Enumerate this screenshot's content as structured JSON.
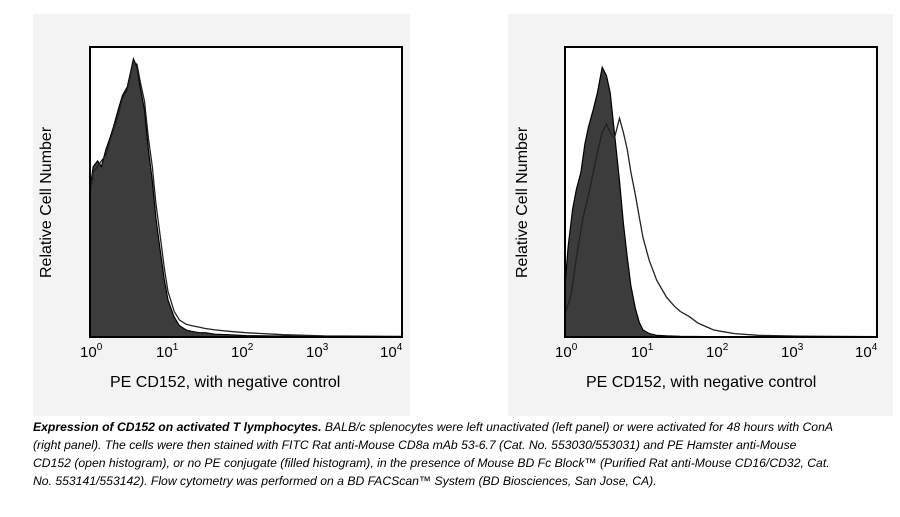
{
  "chart_data": [
    {
      "type": "histogram",
      "panel": "left",
      "ylabel": "Relative Cell Number",
      "xlabel": "PE CD152, with negative control",
      "xscale": "log",
      "xlim": [
        1,
        10000
      ],
      "ylim": [
        0,
        1
      ],
      "ticks": [
        {
          "base": "10",
          "exp": "0"
        },
        {
          "base": "10",
          "exp": "1"
        },
        {
          "base": "10",
          "exp": "2"
        },
        {
          "base": "10",
          "exp": "3"
        },
        {
          "base": "10",
          "exp": "4"
        }
      ],
      "series": [
        {
          "name": "no PE conjugate (filled histogram)",
          "style": "filled",
          "x": [
            1,
            1.1,
            1.25,
            1.4,
            1.6,
            1.8,
            2,
            2.3,
            2.6,
            3,
            3.3,
            3.6,
            4,
            4.4,
            5,
            5.6,
            6.3,
            7,
            8,
            9,
            10,
            12,
            14,
            17,
            20,
            25,
            30,
            40,
            60,
            100,
            300,
            1000,
            10000
          ],
          "y": [
            0.52,
            0.6,
            0.62,
            0.6,
            0.66,
            0.7,
            0.74,
            0.8,
            0.85,
            0.88,
            0.93,
            0.98,
            0.95,
            0.88,
            0.8,
            0.66,
            0.55,
            0.42,
            0.3,
            0.2,
            0.13,
            0.07,
            0.04,
            0.025,
            0.02,
            0.015,
            0.015,
            0.01,
            0.008,
            0.005,
            0.003,
            0.002,
            0.001
          ]
        },
        {
          "name": "PE Hamster anti-Mouse CD152 (open histogram)",
          "style": "open",
          "x": [
            1,
            1.1,
            1.25,
            1.4,
            1.6,
            1.8,
            2,
            2.3,
            2.6,
            3,
            3.3,
            3.6,
            4,
            4.4,
            5,
            5.6,
            6.3,
            7,
            8,
            9,
            10,
            12,
            14,
            17,
            20,
            25,
            30,
            40,
            60,
            100,
            300,
            1000,
            10000
          ],
          "y": [
            0.5,
            0.58,
            0.6,
            0.62,
            0.64,
            0.69,
            0.73,
            0.78,
            0.84,
            0.87,
            0.92,
            0.97,
            0.96,
            0.9,
            0.83,
            0.7,
            0.6,
            0.47,
            0.35,
            0.24,
            0.16,
            0.09,
            0.06,
            0.045,
            0.04,
            0.035,
            0.03,
            0.025,
            0.02,
            0.015,
            0.008,
            0.004,
            0.002
          ]
        }
      ]
    },
    {
      "type": "histogram",
      "panel": "right",
      "ylabel": "Relative Cell Number",
      "xlabel": "PE CD152, with negative control",
      "xscale": "log",
      "xlim": [
        1,
        10000
      ],
      "ylim": [
        0,
        1
      ],
      "ticks": [
        {
          "base": "10",
          "exp": "0"
        },
        {
          "base": "10",
          "exp": "1"
        },
        {
          "base": "10",
          "exp": "2"
        },
        {
          "base": "10",
          "exp": "3"
        },
        {
          "base": "10",
          "exp": "4"
        }
      ],
      "series": [
        {
          "name": "no PE conjugate (filled histogram)",
          "style": "filled",
          "x": [
            1,
            1.1,
            1.25,
            1.4,
            1.6,
            1.8,
            2,
            2.3,
            2.6,
            3,
            3.4,
            3.8,
            4.3,
            5,
            5.6,
            6.3,
            7,
            8,
            9,
            10,
            12,
            15,
            20,
            30,
            100,
            10000
          ],
          "y": [
            0.18,
            0.32,
            0.45,
            0.52,
            0.58,
            0.68,
            0.74,
            0.8,
            0.86,
            0.95,
            0.92,
            0.86,
            0.72,
            0.55,
            0.4,
            0.28,
            0.18,
            0.1,
            0.05,
            0.025,
            0.012,
            0.006,
            0.004,
            0.002,
            0.001,
            0.0
          ]
        },
        {
          "name": "PE Hamster anti-Mouse CD152 (open histogram)",
          "style": "open",
          "x": [
            1,
            1.2,
            1.4,
            1.7,
            2,
            2.3,
            2.6,
            3,
            3.4,
            3.8,
            4.3,
            5,
            5.6,
            6.3,
            7,
            8,
            9,
            10,
            12,
            15,
            20,
            25,
            30,
            40,
            50,
            60,
            80,
            100,
            150,
            300,
            1000,
            10000
          ],
          "y": [
            0.08,
            0.15,
            0.28,
            0.42,
            0.5,
            0.58,
            0.65,
            0.72,
            0.75,
            0.72,
            0.7,
            0.77,
            0.72,
            0.66,
            0.58,
            0.5,
            0.42,
            0.35,
            0.27,
            0.2,
            0.14,
            0.11,
            0.09,
            0.07,
            0.05,
            0.04,
            0.025,
            0.02,
            0.012,
            0.006,
            0.003,
            0.001
          ]
        }
      ]
    }
  ],
  "caption": {
    "bold": "Expression of CD152 on activated T lymphocytes.",
    "text": " BALB/c splenocytes were left unactivated (left panel) or were activated for 48 hours with ConA (right panel). The cells were then stained with FITC Rat anti-Mouse CD8a mAb 53-6.7 (Cat. No. 553030/553031) and PE Hamster anti-Mouse CD152 (open histogram), or no PE conjugate (filled histogram), in the presence of Mouse BD Fc Block™ (Purified Rat anti-Mouse CD16/CD32, Cat. No. 553141/553142). Flow cytometry was performed on a BD FACScan™ System (BD Biosciences, San Jose, CA)."
  },
  "colors": {
    "fill": "#3c3c3c",
    "open_stroke": "#222222",
    "axis": "#000000",
    "panel_bg": "#f3f3f3"
  }
}
